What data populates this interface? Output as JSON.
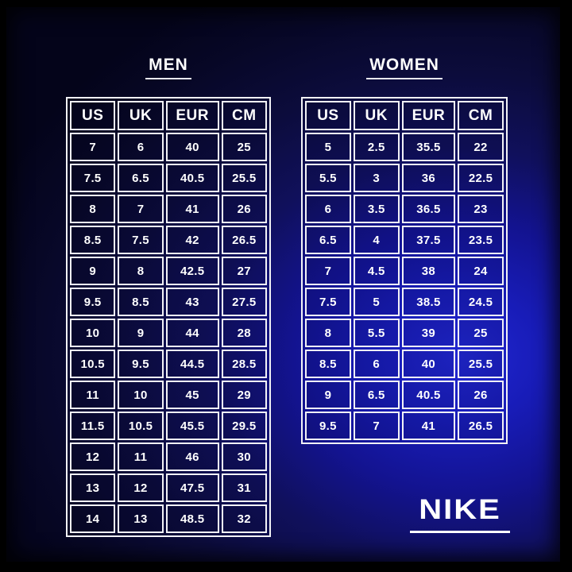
{
  "chart_data": [
    {
      "type": "table",
      "title": "MEN",
      "columns": [
        "US",
        "UK",
        "EUR",
        "CM"
      ],
      "rows": [
        [
          "7",
          "6",
          "40",
          "25"
        ],
        [
          "7.5",
          "6.5",
          "40.5",
          "25.5"
        ],
        [
          "8",
          "7",
          "41",
          "26"
        ],
        [
          "8.5",
          "7.5",
          "42",
          "26.5"
        ],
        [
          "9",
          "8",
          "42.5",
          "27"
        ],
        [
          "9.5",
          "8.5",
          "43",
          "27.5"
        ],
        [
          "10",
          "9",
          "44",
          "28"
        ],
        [
          "10.5",
          "9.5",
          "44.5",
          "28.5"
        ],
        [
          "11",
          "10",
          "45",
          "29"
        ],
        [
          "11.5",
          "10.5",
          "45.5",
          "29.5"
        ],
        [
          "12",
          "11",
          "46",
          "30"
        ],
        [
          "13",
          "12",
          "47.5",
          "31"
        ],
        [
          "14",
          "13",
          "48.5",
          "32"
        ]
      ]
    },
    {
      "type": "table",
      "title": "WOMEN",
      "columns": [
        "US",
        "UK",
        "EUR",
        "CM"
      ],
      "rows": [
        [
          "5",
          "2.5",
          "35.5",
          "22"
        ],
        [
          "5.5",
          "3",
          "36",
          "22.5"
        ],
        [
          "6",
          "3.5",
          "36.5",
          "23"
        ],
        [
          "6.5",
          "4",
          "37.5",
          "23.5"
        ],
        [
          "7",
          "4.5",
          "38",
          "24"
        ],
        [
          "7.5",
          "5",
          "38.5",
          "24.5"
        ],
        [
          "8",
          "5.5",
          "39",
          "25"
        ],
        [
          "8.5",
          "6",
          "40",
          "25.5"
        ],
        [
          "9",
          "6.5",
          "40.5",
          "26"
        ],
        [
          "9.5",
          "7",
          "41",
          "26.5"
        ]
      ]
    }
  ],
  "brand": {
    "logo_text": "NIKE"
  },
  "colors": {
    "background_core_blue": "#2127d2",
    "background_dark_navy": "#0c0c3c",
    "frame_black": "#000000",
    "table_border": "#f2f2f6",
    "text": "#ffffff"
  }
}
